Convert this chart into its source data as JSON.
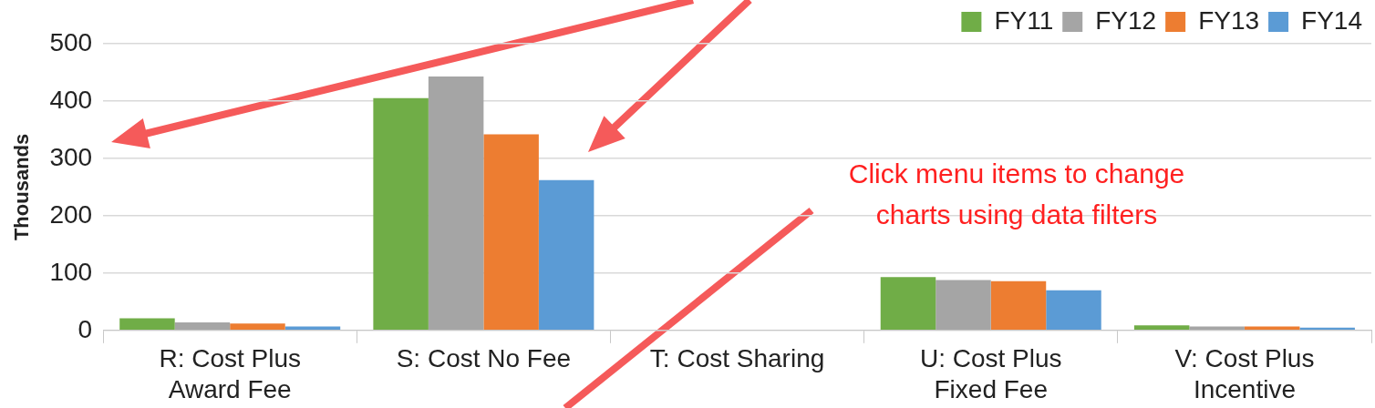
{
  "chart_data": {
    "type": "bar",
    "ylabel": "Thousands",
    "categories": [
      "R: Cost Plus Award Fee",
      "S: Cost No Fee",
      "T: Cost Sharing",
      "U: Cost Plus Fixed Fee",
      "V: Cost Plus Incentive"
    ],
    "series": [
      {
        "name": "FY11",
        "color": "#70ad47",
        "values": [
          21,
          405,
          0,
          93,
          9
        ]
      },
      {
        "name": "FY12",
        "color": "#a5a5a5",
        "values": [
          14,
          443,
          0,
          88,
          7
        ]
      },
      {
        "name": "FY13",
        "color": "#ed7d31",
        "values": [
          12,
          342,
          0,
          86,
          7
        ]
      },
      {
        "name": "FY14",
        "color": "#5b9bd5",
        "values": [
          7,
          262,
          0,
          70,
          5
        ]
      }
    ],
    "ylim": [
      0,
      500
    ],
    "yticks": [
      0,
      100,
      200,
      300,
      400,
      500
    ],
    "grid": "y",
    "legend": "top right",
    "annotations": [
      "Click menu items to change charts using data filters"
    ]
  }
}
